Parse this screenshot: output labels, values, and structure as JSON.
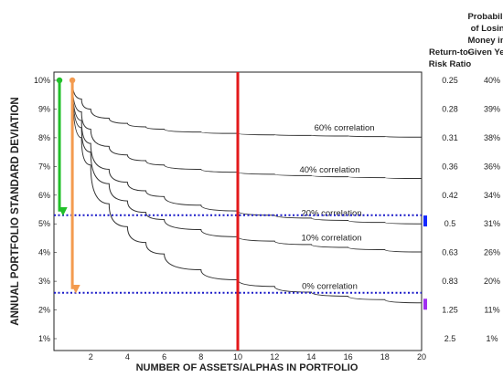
{
  "chart_data": {
    "type": "line",
    "xlabel": "NUMBER OF ASSETS/ALPHAS IN PORTFOLIO",
    "ylabel": "ANNUAL PORTFOLIO STANDARD DEVIATION",
    "xlim": [
      0,
      20
    ],
    "ylim": [
      1,
      10
    ],
    "x_ticks": [
      "2",
      "4",
      "6",
      "8",
      "10",
      "12",
      "14",
      "16",
      "18",
      "20"
    ],
    "y_ticks": [
      "1%",
      "2%",
      "3%",
      "4%",
      "5%",
      "6%",
      "7%",
      "8%",
      "9%",
      "10%"
    ],
    "series": [
      {
        "name": "60% correlation",
        "x": [
          1,
          1.5,
          2,
          3,
          4,
          5,
          6,
          8,
          10,
          12,
          14,
          16,
          18,
          20
        ],
        "y": [
          10,
          9.35,
          9.0,
          8.68,
          8.5,
          8.38,
          8.3,
          8.2,
          8.15,
          8.1,
          8.08,
          8.06,
          8.04,
          8.02
        ]
      },
      {
        "name": "40% correlation",
        "x": [
          1,
          1.5,
          2,
          3,
          4,
          5,
          6,
          8,
          10,
          12,
          14,
          16,
          18,
          20
        ],
        "y": [
          10,
          8.9,
          8.3,
          7.7,
          7.4,
          7.2,
          7.05,
          6.9,
          6.8,
          6.73,
          6.68,
          6.64,
          6.61,
          6.58
        ]
      },
      {
        "name": "20% correlation",
        "x": [
          1,
          1.5,
          2,
          3,
          4,
          5,
          6,
          8,
          10,
          12,
          14,
          16,
          18,
          20
        ],
        "y": [
          10,
          8.6,
          7.8,
          6.9,
          6.45,
          6.15,
          5.95,
          5.65,
          5.45,
          5.3,
          5.2,
          5.12,
          5.05,
          5.0
        ]
      },
      {
        "name": "10% correlation",
        "x": [
          1,
          1.5,
          2,
          3,
          4,
          5,
          6,
          8,
          10,
          12,
          14,
          16,
          18,
          20
        ],
        "y": [
          10,
          8.35,
          7.5,
          6.4,
          5.8,
          5.4,
          5.15,
          4.8,
          4.55,
          4.4,
          4.28,
          4.18,
          4.1,
          4.02
        ]
      },
      {
        "name": "0% correlation",
        "x": [
          1,
          1.5,
          2,
          3,
          4,
          5,
          6,
          8,
          10,
          12,
          14,
          16,
          18,
          20
        ],
        "y": [
          10,
          8.0,
          7.05,
          5.7,
          4.9,
          4.35,
          3.95,
          3.4,
          3.05,
          2.82,
          2.62,
          2.48,
          2.36,
          2.25
        ]
      }
    ],
    "reference_lines": {
      "vertical_x": 10,
      "horizontal_y": [
        5.3,
        2.6
      ],
      "vertical_color": "#e3191b",
      "horizontal_color": "#1a1ac8"
    },
    "arrows": [
      {
        "x": 0.3,
        "from": 10,
        "to": 5.3,
        "color": "#22c02a"
      },
      {
        "x": 1.0,
        "from": 10,
        "to": 2.6,
        "color": "#f39b4f"
      }
    ],
    "markers": [
      {
        "y": 5.1,
        "color": "#1428ff"
      },
      {
        "y": 2.2,
        "color": "#a02ff0"
      }
    ],
    "grid": false,
    "side_table": {
      "col1_header": [
        "Return-to-",
        "Risk Ratio"
      ],
      "col2_header": [
        "Probability",
        "of Losing",
        "Money in a",
        "Given Year"
      ],
      "rows": [
        {
          "y": 10,
          "ratio": "0.25",
          "prob": "40%"
        },
        {
          "y": 9,
          "ratio": "0.28",
          "prob": "39%"
        },
        {
          "y": 8,
          "ratio": "0.31",
          "prob": "38%"
        },
        {
          "y": 7,
          "ratio": "0.36",
          "prob": "36%"
        },
        {
          "y": 6,
          "ratio": "0.42",
          "prob": "34%"
        },
        {
          "y": 5,
          "ratio": "0.5",
          "prob": "31%"
        },
        {
          "y": 4,
          "ratio": "0.63",
          "prob": "26%"
        },
        {
          "y": 3,
          "ratio": "0.83",
          "prob": "20%"
        },
        {
          "y": 2,
          "ratio": "1.25",
          "prob": "11%"
        },
        {
          "y": 1,
          "ratio": "2.5",
          "prob": "1%"
        }
      ]
    }
  }
}
